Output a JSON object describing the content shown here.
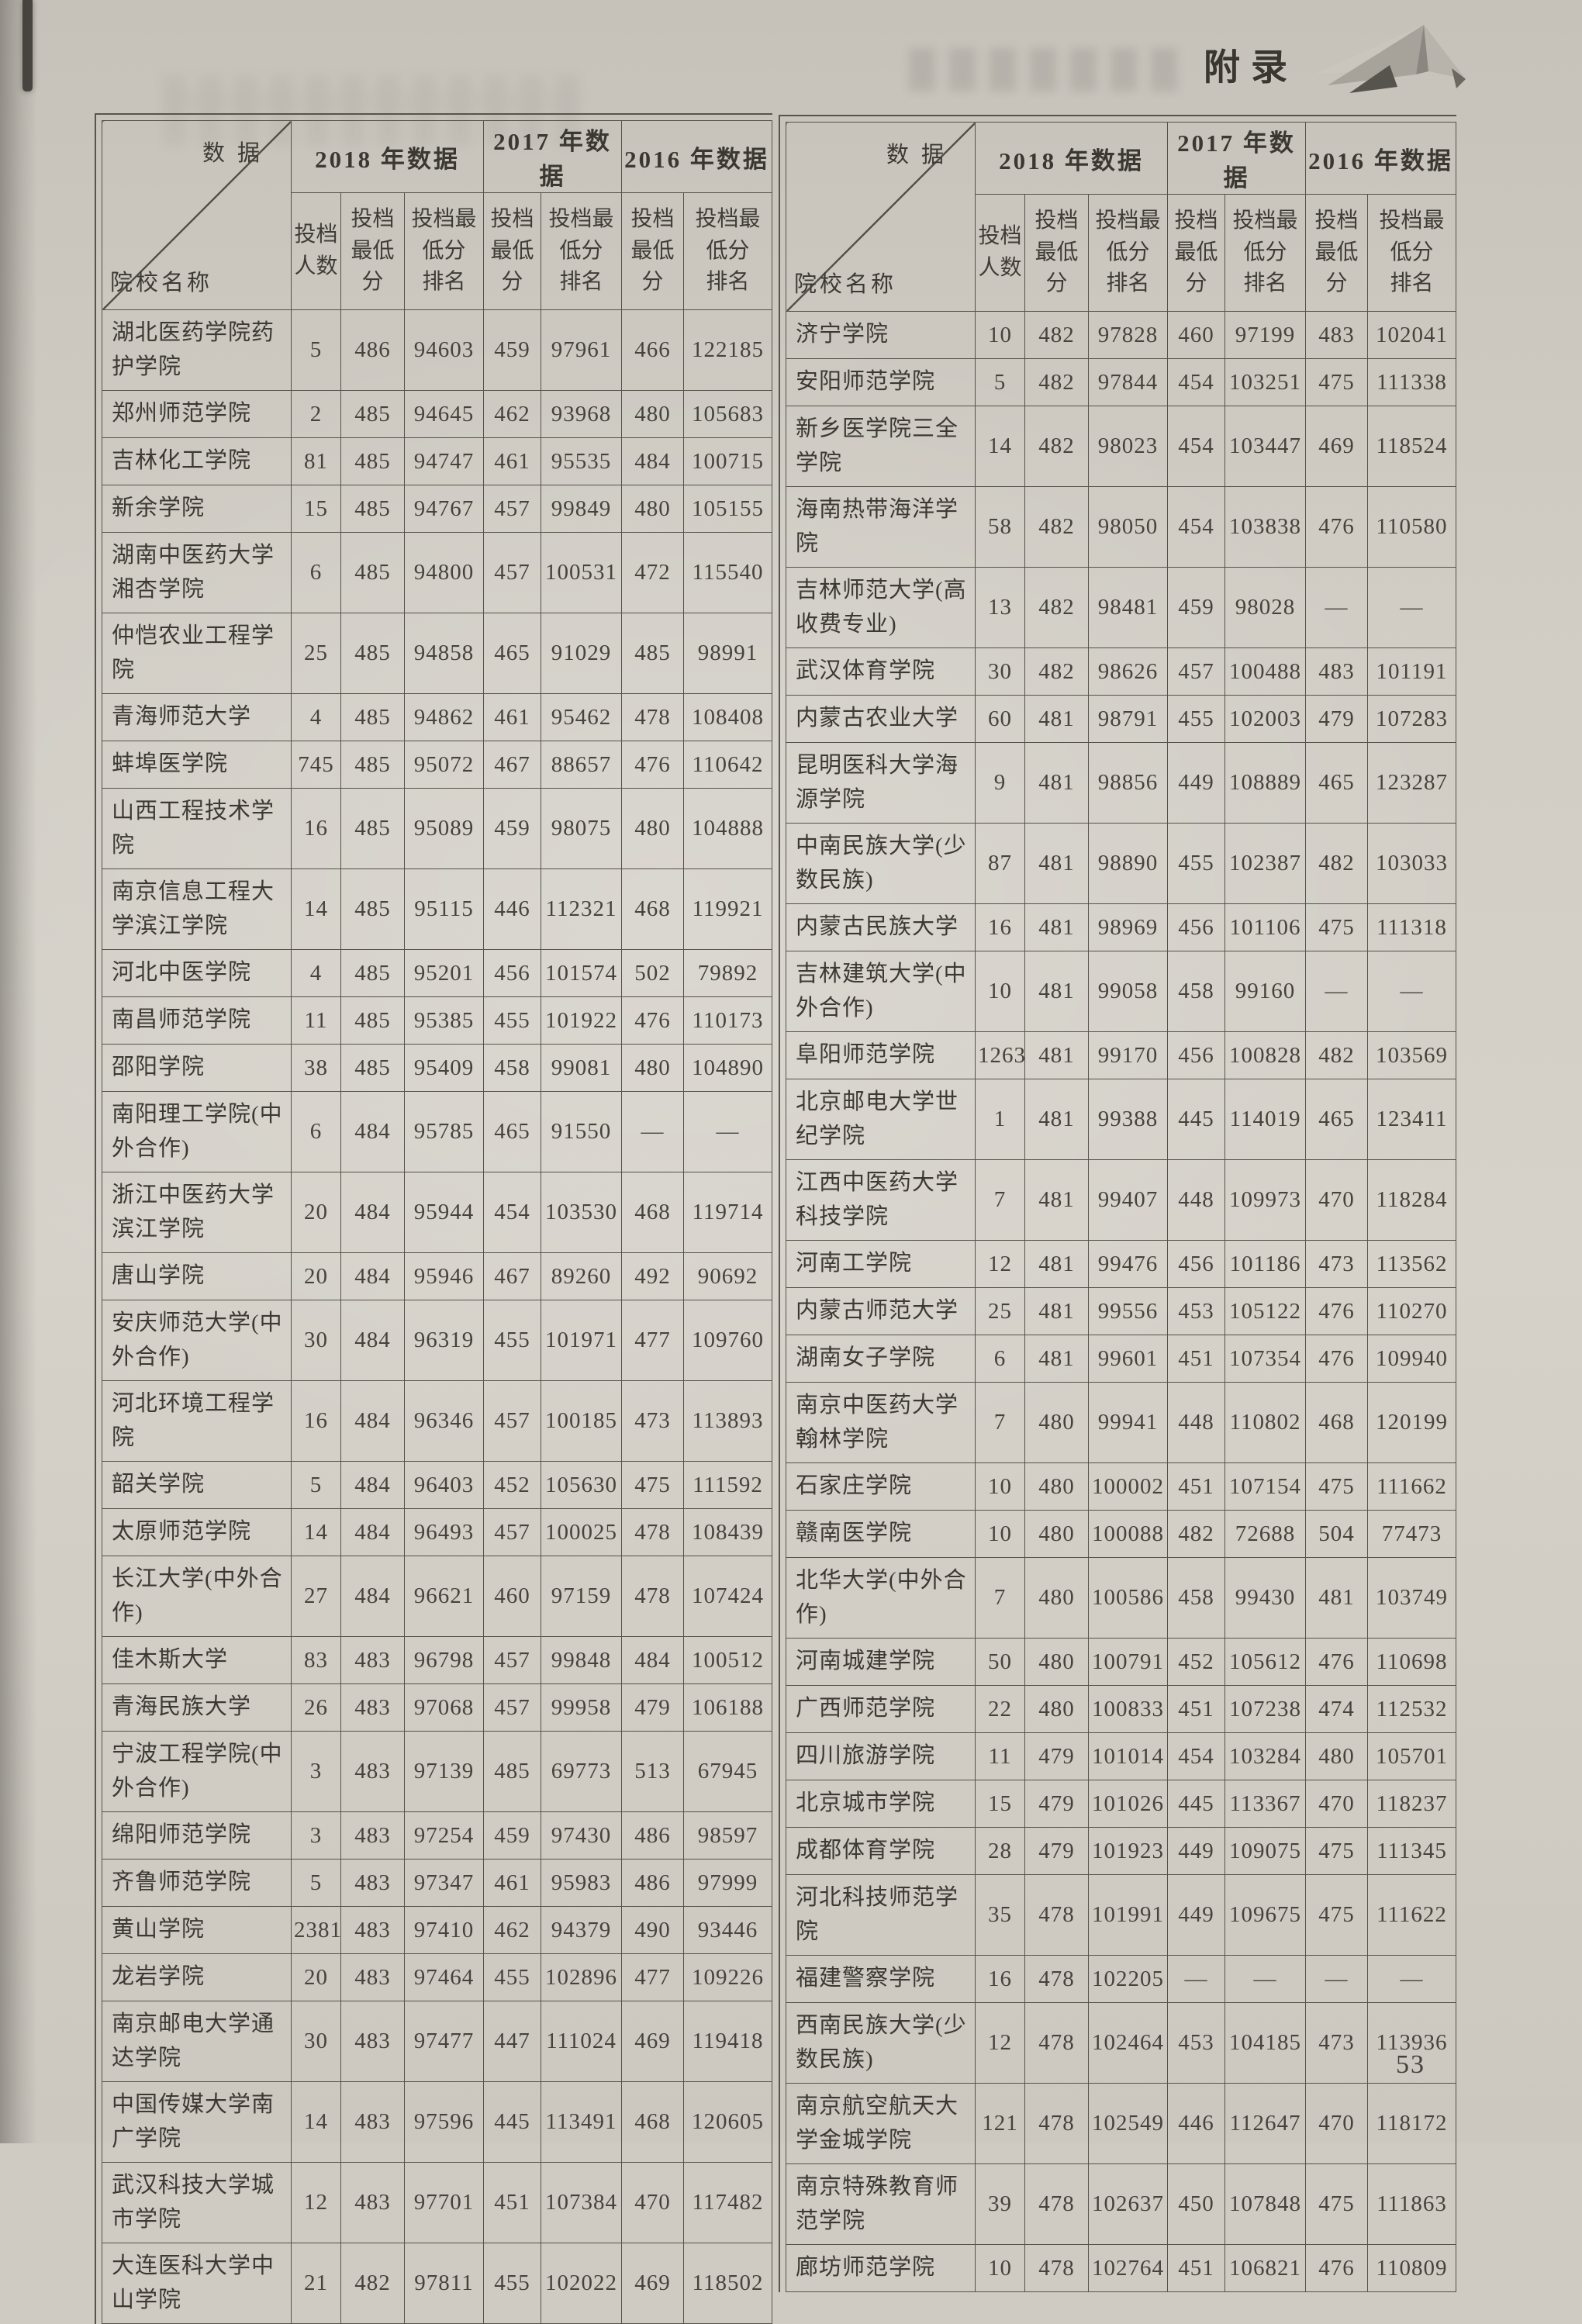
{
  "page": {
    "header_title": "附录",
    "page_number": "53"
  },
  "table_header": {
    "corner_top": "数据",
    "corner_bottom": "院校名称",
    "years": [
      "2018 年数据",
      "2017 年数据",
      "2016 年数据"
    ],
    "sub_cols": [
      "投档\n人数",
      "投档\n最低\n分",
      "投档最\n低分\n排名",
      "投档\n最低\n分",
      "投档最\n低分\n排名",
      "投档\n最低\n分",
      "投档最\n低分\n排名"
    ]
  },
  "left_table": {
    "rows": [
      [
        "湖北医药学院药护学院",
        "5",
        "486",
        "94603",
        "459",
        "97961",
        "466",
        "122185"
      ],
      [
        "郑州师范学院",
        "2",
        "485",
        "94645",
        "462",
        "93968",
        "480",
        "105683"
      ],
      [
        "吉林化工学院",
        "81",
        "485",
        "94747",
        "461",
        "95535",
        "484",
        "100715"
      ],
      [
        "新余学院",
        "15",
        "485",
        "94767",
        "457",
        "99849",
        "480",
        "105155"
      ],
      [
        "湖南中医药大学湘杏学院",
        "6",
        "485",
        "94800",
        "457",
        "100531",
        "472",
        "115540"
      ],
      [
        "仲恺农业工程学院",
        "25",
        "485",
        "94858",
        "465",
        "91029",
        "485",
        "98991"
      ],
      [
        "青海师范大学",
        "4",
        "485",
        "94862",
        "461",
        "95462",
        "478",
        "108408"
      ],
      [
        "蚌埠医学院",
        "745",
        "485",
        "95072",
        "467",
        "88657",
        "476",
        "110642"
      ],
      [
        "山西工程技术学院",
        "16",
        "485",
        "95089",
        "459",
        "98075",
        "480",
        "104888"
      ],
      [
        "南京信息工程大学滨江学院",
        "14",
        "485",
        "95115",
        "446",
        "112321",
        "468",
        "119921"
      ],
      [
        "河北中医学院",
        "4",
        "485",
        "95201",
        "456",
        "101574",
        "502",
        "79892"
      ],
      [
        "南昌师范学院",
        "11",
        "485",
        "95385",
        "455",
        "101922",
        "476",
        "110173"
      ],
      [
        "邵阳学院",
        "38",
        "485",
        "95409",
        "458",
        "99081",
        "480",
        "104890"
      ],
      [
        "南阳理工学院(中外合作)",
        "6",
        "484",
        "95785",
        "465",
        "91550",
        "—",
        "—"
      ],
      [
        "浙江中医药大学滨江学院",
        "20",
        "484",
        "95944",
        "454",
        "103530",
        "468",
        "119714"
      ],
      [
        "唐山学院",
        "20",
        "484",
        "95946",
        "467",
        "89260",
        "492",
        "90692"
      ],
      [
        "安庆师范大学(中外合作)",
        "30",
        "484",
        "96319",
        "455",
        "101971",
        "477",
        "109760"
      ],
      [
        "河北环境工程学院",
        "16",
        "484",
        "96346",
        "457",
        "100185",
        "473",
        "113893"
      ],
      [
        "韶关学院",
        "5",
        "484",
        "96403",
        "452",
        "105630",
        "475",
        "111592"
      ],
      [
        "太原师范学院",
        "14",
        "484",
        "96493",
        "457",
        "100025",
        "478",
        "108439"
      ],
      [
        "长江大学(中外合作)",
        "27",
        "484",
        "96621",
        "460",
        "97159",
        "478",
        "107424"
      ],
      [
        "佳木斯大学",
        "83",
        "483",
        "96798",
        "457",
        "99848",
        "484",
        "100512"
      ],
      [
        "青海民族大学",
        "26",
        "483",
        "97068",
        "457",
        "99958",
        "479",
        "106188"
      ],
      [
        "宁波工程学院(中外合作)",
        "3",
        "483",
        "97139",
        "485",
        "69773",
        "513",
        "67945"
      ],
      [
        "绵阳师范学院",
        "3",
        "483",
        "97254",
        "459",
        "97430",
        "486",
        "98597"
      ],
      [
        "齐鲁师范学院",
        "5",
        "483",
        "97347",
        "461",
        "95983",
        "486",
        "97999"
      ],
      [
        "黄山学院",
        "2381",
        "483",
        "97410",
        "462",
        "94379",
        "490",
        "93446"
      ],
      [
        "龙岩学院",
        "20",
        "483",
        "97464",
        "455",
        "102896",
        "477",
        "109226"
      ],
      [
        "南京邮电大学通达学院",
        "30",
        "483",
        "97477",
        "447",
        "111024",
        "469",
        "119418"
      ],
      [
        "中国传媒大学南广学院",
        "14",
        "483",
        "97596",
        "445",
        "113491",
        "468",
        "120605"
      ],
      [
        "武汉科技大学城市学院",
        "12",
        "483",
        "97701",
        "451",
        "107384",
        "470",
        "117482"
      ],
      [
        "大连医科大学中山学院",
        "21",
        "482",
        "97811",
        "455",
        "102022",
        "469",
        "118502"
      ]
    ]
  },
  "right_table": {
    "rows": [
      [
        "济宁学院",
        "10",
        "482",
        "97828",
        "460",
        "97199",
        "483",
        "102041"
      ],
      [
        "安阳师范学院",
        "5",
        "482",
        "97844",
        "454",
        "103251",
        "475",
        "111338"
      ],
      [
        "新乡医学院三全学院",
        "14",
        "482",
        "98023",
        "454",
        "103447",
        "469",
        "118524"
      ],
      [
        "海南热带海洋学院",
        "58",
        "482",
        "98050",
        "454",
        "103838",
        "476",
        "110580"
      ],
      [
        "吉林师范大学(高收费专业)",
        "13",
        "482",
        "98481",
        "459",
        "98028",
        "—",
        "—"
      ],
      [
        "武汉体育学院",
        "30",
        "482",
        "98626",
        "457",
        "100488",
        "483",
        "101191"
      ],
      [
        "内蒙古农业大学",
        "60",
        "481",
        "98791",
        "455",
        "102003",
        "479",
        "107283"
      ],
      [
        "昆明医科大学海源学院",
        "9",
        "481",
        "98856",
        "449",
        "108889",
        "465",
        "123287"
      ],
      [
        "中南民族大学(少数民族)",
        "87",
        "481",
        "98890",
        "455",
        "102387",
        "482",
        "103033"
      ],
      [
        "内蒙古民族大学",
        "16",
        "481",
        "98969",
        "456",
        "101106",
        "475",
        "111318"
      ],
      [
        "吉林建筑大学(中外合作)",
        "10",
        "481",
        "99058",
        "458",
        "99160",
        "—",
        "—"
      ],
      [
        "阜阳师范学院",
        "1263",
        "481",
        "99170",
        "456",
        "100828",
        "482",
        "103569"
      ],
      [
        "北京邮电大学世纪学院",
        "1",
        "481",
        "99388",
        "445",
        "114019",
        "465",
        "123411"
      ],
      [
        "江西中医药大学科技学院",
        "7",
        "481",
        "99407",
        "448",
        "109973",
        "470",
        "118284"
      ],
      [
        "河南工学院",
        "12",
        "481",
        "99476",
        "456",
        "101186",
        "473",
        "113562"
      ],
      [
        "内蒙古师范大学",
        "25",
        "481",
        "99556",
        "453",
        "105122",
        "476",
        "110270"
      ],
      [
        "湖南女子学院",
        "6",
        "481",
        "99601",
        "451",
        "107354",
        "476",
        "109940"
      ],
      [
        "南京中医药大学翰林学院",
        "7",
        "480",
        "99941",
        "448",
        "110802",
        "468",
        "120199"
      ],
      [
        "石家庄学院",
        "10",
        "480",
        "100002",
        "451",
        "107154",
        "475",
        "111662"
      ],
      [
        "赣南医学院",
        "10",
        "480",
        "100088",
        "482",
        "72688",
        "504",
        "77473"
      ],
      [
        "北华大学(中外合作)",
        "7",
        "480",
        "100586",
        "458",
        "99430",
        "481",
        "103749"
      ],
      [
        "河南城建学院",
        "50",
        "480",
        "100791",
        "452",
        "105612",
        "476",
        "110698"
      ],
      [
        "广西师范学院",
        "22",
        "480",
        "100833",
        "451",
        "107238",
        "474",
        "112532"
      ],
      [
        "四川旅游学院",
        "11",
        "479",
        "101014",
        "454",
        "103284",
        "480",
        "105701"
      ],
      [
        "北京城市学院",
        "15",
        "479",
        "101026",
        "445",
        "113367",
        "470",
        "118237"
      ],
      [
        "成都体育学院",
        "28",
        "479",
        "101923",
        "449",
        "109075",
        "475",
        "111345"
      ],
      [
        "河北科技师范学院",
        "35",
        "478",
        "101991",
        "449",
        "109675",
        "475",
        "111622"
      ],
      [
        "福建警察学院",
        "16",
        "478",
        "102205",
        "—",
        "—",
        "—",
        "—"
      ],
      [
        "西南民族大学(少数民族)",
        "12",
        "478",
        "102464",
        "453",
        "104185",
        "473",
        "113936"
      ],
      [
        "南京航空航天大学金城学院",
        "121",
        "478",
        "102549",
        "446",
        "112647",
        "470",
        "118172"
      ],
      [
        "南京特殊教育师范学院",
        "39",
        "478",
        "102637",
        "450",
        "107848",
        "475",
        "111863"
      ],
      [
        "廊坊师范学院",
        "10",
        "478",
        "102764",
        "451",
        "106821",
        "476",
        "110809"
      ]
    ]
  }
}
